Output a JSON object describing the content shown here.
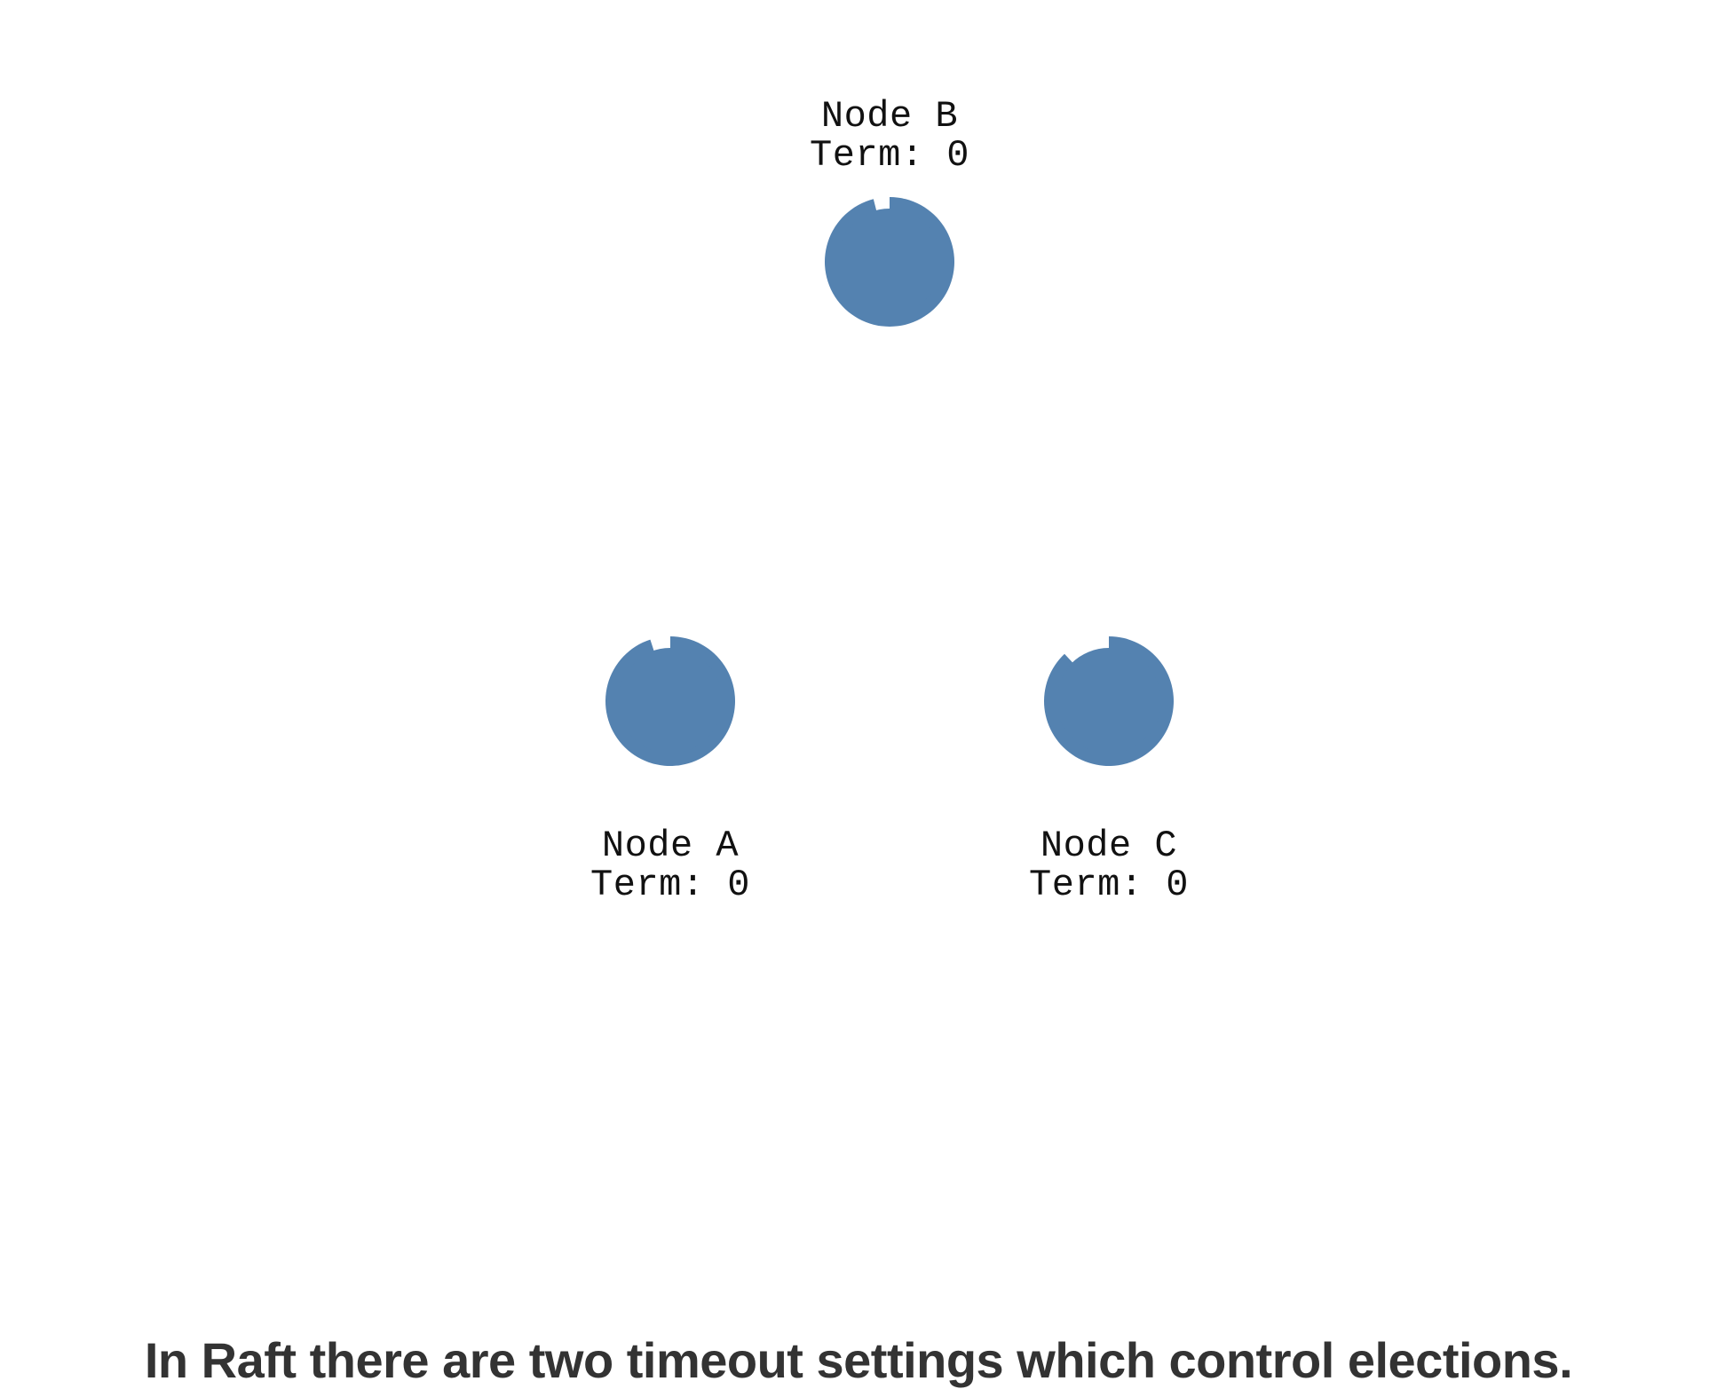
{
  "nodes": [
    {
      "id": "B",
      "name": "Node B",
      "term_label": "Term: 0",
      "timeout_remaining": 0.96,
      "color": "#5482b0"
    },
    {
      "id": "A",
      "name": "Node A",
      "term_label": "Term: 0",
      "timeout_remaining": 0.95,
      "color": "#5482b0"
    },
    {
      "id": "C",
      "name": "Node C",
      "term_label": "Term: 0",
      "timeout_remaining": 0.88,
      "color": "#5482b0"
    }
  ],
  "caption": "In Raft there are two timeout settings which control elections."
}
